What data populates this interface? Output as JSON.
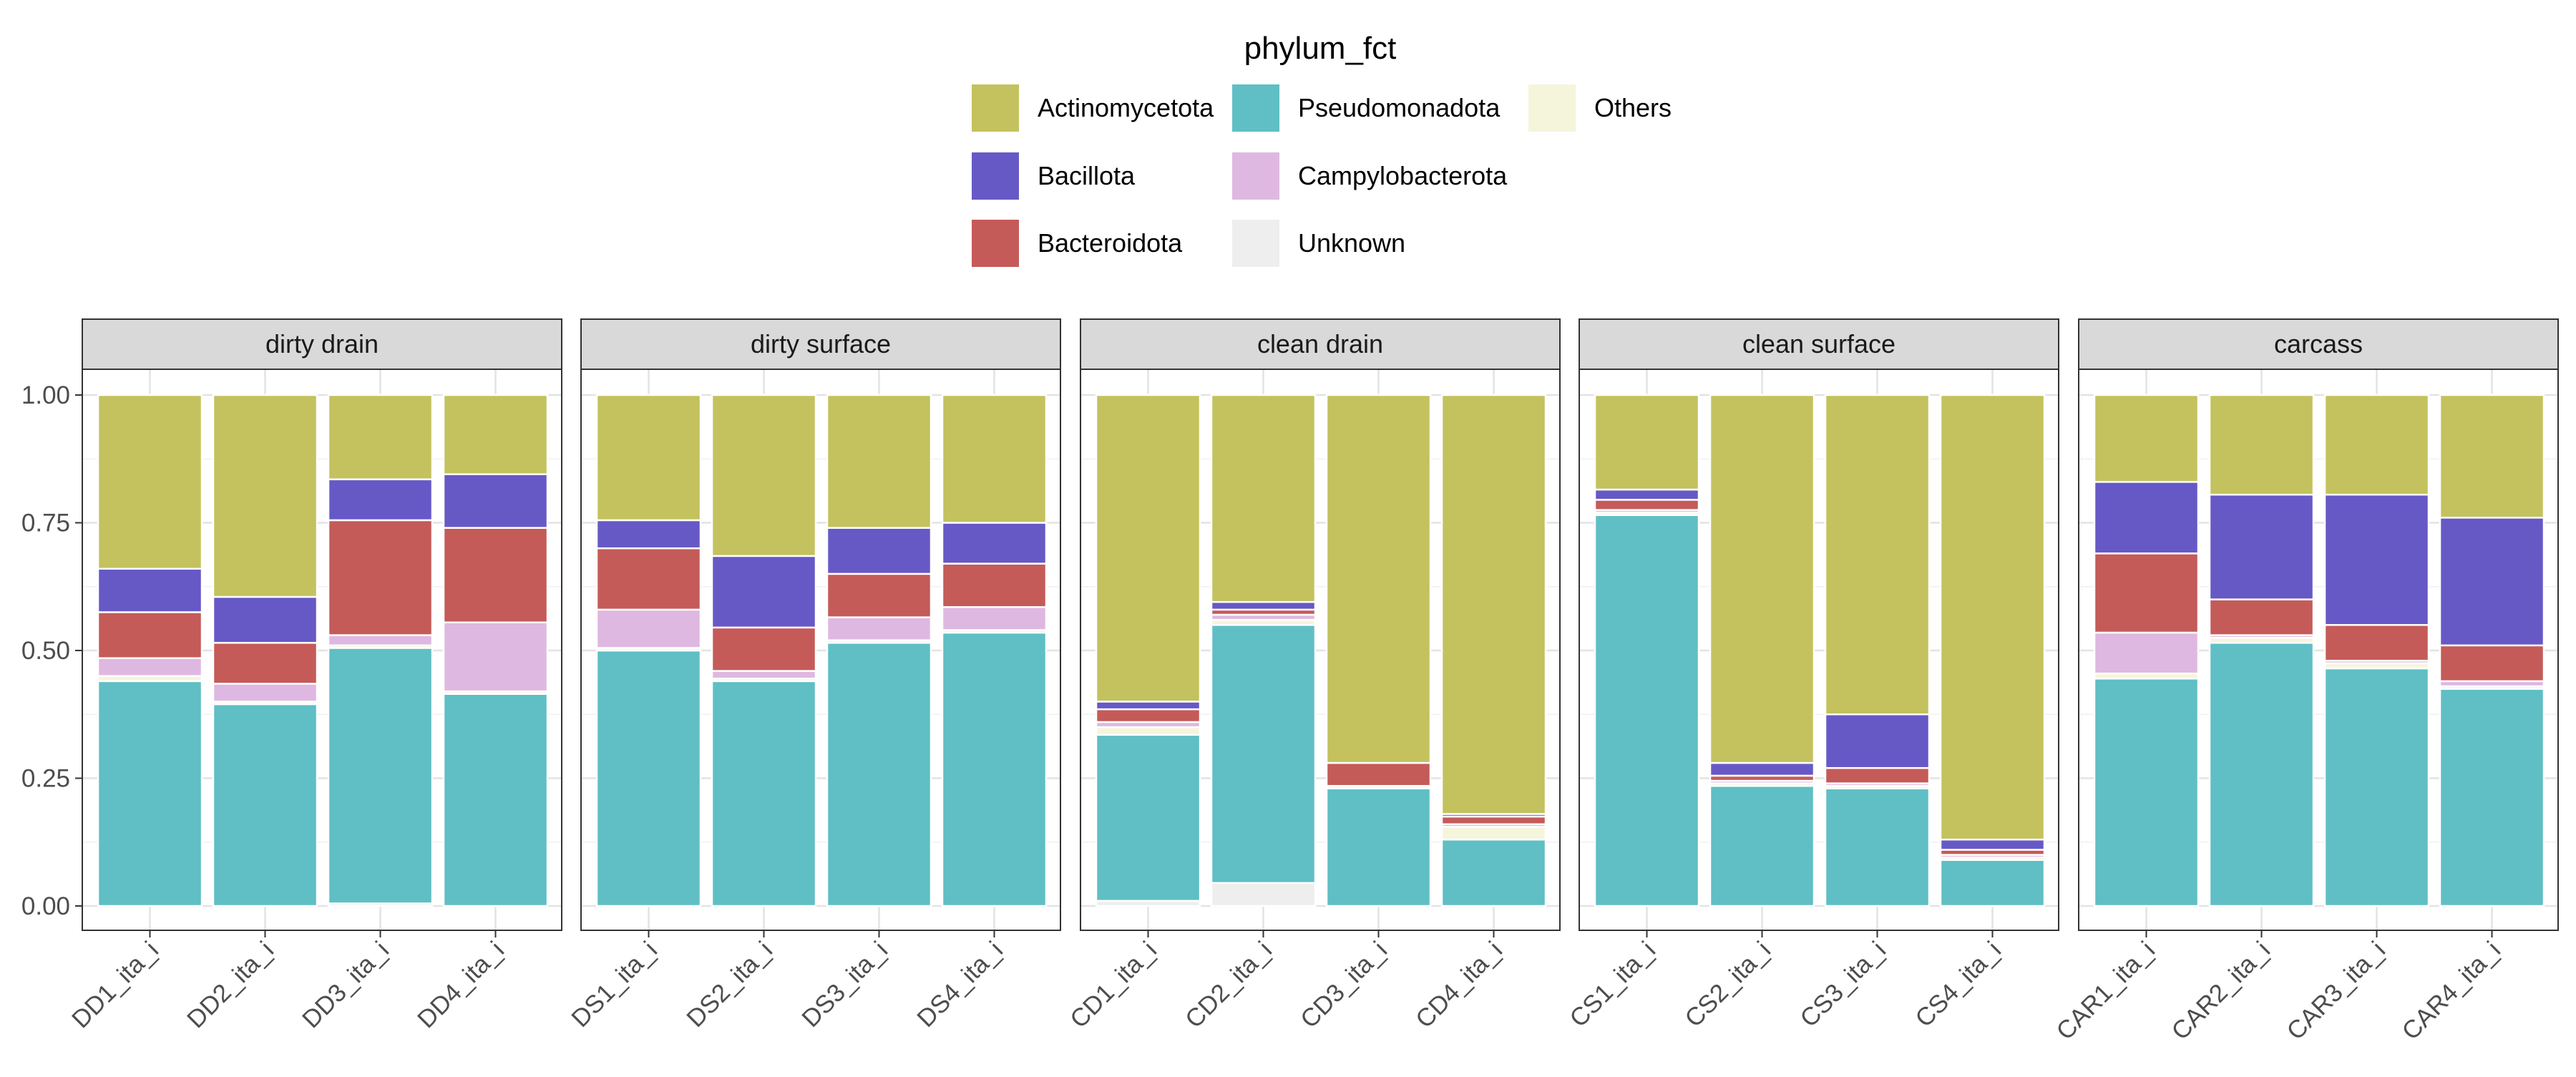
{
  "chart_data": {
    "type": "bar",
    "stacked": true,
    "legend": {
      "title": "phylum_fct",
      "placement": "top",
      "entries": [
        {
          "label": "Actinomycetota",
          "color": "#C3C25E"
        },
        {
          "label": "Bacillota",
          "color": "#6659C6"
        },
        {
          "label": "Bacteroidota",
          "color": "#C45B59"
        },
        {
          "label": "Pseudomonadota",
          "color": "#5FBFC5"
        },
        {
          "label": "Campylobacterota",
          "color": "#DFB8E1"
        },
        {
          "label": "Unknown",
          "color": "#EEEEEE"
        },
        {
          "label": "Others",
          "color": "#F5F5DC"
        }
      ]
    },
    "stack_order_bottom_to_top": [
      "Unknown",
      "Pseudomonadota",
      "Others",
      "Campylobacterota",
      "Bacteroidota",
      "Bacillota",
      "Actinomycetota"
    ],
    "ylim": [
      0,
      1
    ],
    "y_ticks": [
      "0.00",
      "0.25",
      "0.50",
      "0.75",
      "1.00"
    ],
    "y_tick_values": [
      0,
      0.25,
      0.5,
      0.75,
      1
    ],
    "grid": true,
    "panels": [
      {
        "title": "dirty drain",
        "samples": [
          {
            "label": "DD1_ita_i",
            "values": {
              "Unknown": 0.0,
              "Pseudomonadota": 0.44,
              "Others": 0.01,
              "Campylobacterota": 0.035,
              "Bacteroidota": 0.09,
              "Bacillota": 0.085,
              "Actinomycetota": 0.34
            }
          },
          {
            "label": "DD2_ita_i",
            "values": {
              "Unknown": 0.0,
              "Pseudomonadota": 0.395,
              "Others": 0.005,
              "Campylobacterota": 0.035,
              "Bacteroidota": 0.08,
              "Bacillota": 0.09,
              "Actinomycetota": 0.395
            }
          },
          {
            "label": "DD3_ita_i",
            "values": {
              "Unknown": 0.005,
              "Pseudomonadota": 0.5,
              "Others": 0.005,
              "Campylobacterota": 0.02,
              "Bacteroidota": 0.225,
              "Bacillota": 0.08,
              "Actinomycetota": 0.165
            }
          },
          {
            "label": "DD4_ita_i",
            "values": {
              "Unknown": 0.0,
              "Pseudomonadota": 0.415,
              "Others": 0.005,
              "Campylobacterota": 0.135,
              "Bacteroidota": 0.185,
              "Bacillota": 0.105,
              "Actinomycetota": 0.155
            }
          }
        ]
      },
      {
        "title": "dirty surface",
        "samples": [
          {
            "label": "DS1_ita_i",
            "values": {
              "Unknown": 0.0,
              "Pseudomonadota": 0.5,
              "Others": 0.005,
              "Campylobacterota": 0.075,
              "Bacteroidota": 0.12,
              "Bacillota": 0.055,
              "Actinomycetota": 0.245
            }
          },
          {
            "label": "DS2_ita_i",
            "values": {
              "Unknown": 0.0,
              "Pseudomonadota": 0.44,
              "Others": 0.005,
              "Campylobacterota": 0.015,
              "Bacteroidota": 0.085,
              "Bacillota": 0.14,
              "Actinomycetota": 0.315
            }
          },
          {
            "label": "DS3_ita_i",
            "values": {
              "Unknown": 0.0,
              "Pseudomonadota": 0.515,
              "Others": 0.005,
              "Campylobacterota": 0.045,
              "Bacteroidota": 0.085,
              "Bacillota": 0.09,
              "Actinomycetota": 0.26
            }
          },
          {
            "label": "DS4_ita_i",
            "values": {
              "Unknown": 0.0,
              "Pseudomonadota": 0.535,
              "Others": 0.005,
              "Campylobacterota": 0.045,
              "Bacteroidota": 0.085,
              "Bacillota": 0.08,
              "Actinomycetota": 0.25
            }
          }
        ]
      },
      {
        "title": "clean drain",
        "samples": [
          {
            "label": "CD1_ita_i",
            "values": {
              "Unknown": 0.01,
              "Pseudomonadota": 0.325,
              "Others": 0.015,
              "Campylobacterota": 0.01,
              "Bacteroidota": 0.025,
              "Bacillota": 0.015,
              "Actinomycetota": 0.6
            }
          },
          {
            "label": "CD2_ita_i",
            "values": {
              "Unknown": 0.045,
              "Pseudomonadota": 0.505,
              "Others": 0.01,
              "Campylobacterota": 0.01,
              "Bacteroidota": 0.01,
              "Bacillota": 0.015,
              "Actinomycetota": 0.405
            }
          },
          {
            "label": "CD3_ita_i",
            "values": {
              "Unknown": 0.0,
              "Pseudomonadota": 0.23,
              "Others": 0.005,
              "Campylobacterota": 0.0,
              "Bacteroidota": 0.045,
              "Bacillota": 0.0,
              "Actinomycetota": 0.72
            }
          },
          {
            "label": "CD4_ita_i",
            "values": {
              "Unknown": 0.0,
              "Pseudomonadota": 0.13,
              "Others": 0.025,
              "Campylobacterota": 0.005,
              "Bacteroidota": 0.015,
              "Bacillota": 0.005,
              "Actinomycetota": 0.82
            }
          }
        ]
      },
      {
        "title": "clean surface",
        "samples": [
          {
            "label": "CS1_ita_i",
            "values": {
              "Unknown": 0.0,
              "Pseudomonadota": 0.765,
              "Others": 0.005,
              "Campylobacterota": 0.005,
              "Bacteroidota": 0.02,
              "Bacillota": 0.02,
              "Actinomycetota": 0.185
            }
          },
          {
            "label": "CS2_ita_i",
            "values": {
              "Unknown": 0.0,
              "Pseudomonadota": 0.235,
              "Others": 0.005,
              "Campylobacterota": 0.005,
              "Bacteroidota": 0.01,
              "Bacillota": 0.025,
              "Actinomycetota": 0.72
            }
          },
          {
            "label": "CS3_ita_i",
            "values": {
              "Unknown": 0.0,
              "Pseudomonadota": 0.23,
              "Others": 0.005,
              "Campylobacterota": 0.005,
              "Bacteroidota": 0.03,
              "Bacillota": 0.105,
              "Actinomycetota": 0.625
            }
          },
          {
            "label": "CS4_ita_i",
            "values": {
              "Unknown": 0.0,
              "Pseudomonadota": 0.09,
              "Others": 0.005,
              "Campylobacterota": 0.005,
              "Bacteroidota": 0.01,
              "Bacillota": 0.02,
              "Actinomycetota": 0.87
            }
          }
        ]
      },
      {
        "title": "carcass",
        "samples": [
          {
            "label": "CAR1_ita_i",
            "values": {
              "Unknown": 0.0,
              "Pseudomonadota": 0.445,
              "Others": 0.01,
              "Campylobacterota": 0.08,
              "Bacteroidota": 0.155,
              "Bacillota": 0.14,
              "Actinomycetota": 0.17
            }
          },
          {
            "label": "CAR2_ita_i",
            "values": {
              "Unknown": 0.0,
              "Pseudomonadota": 0.515,
              "Others": 0.01,
              "Campylobacterota": 0.005,
              "Bacteroidota": 0.07,
              "Bacillota": 0.205,
              "Actinomycetota": 0.195
            }
          },
          {
            "label": "CAR3_ita_i",
            "values": {
              "Unknown": 0.0,
              "Pseudomonadota": 0.465,
              "Others": 0.01,
              "Campylobacterota": 0.005,
              "Bacteroidota": 0.07,
              "Bacillota": 0.255,
              "Actinomycetota": 0.195
            }
          },
          {
            "label": "CAR4_ita_i",
            "values": {
              "Unknown": 0.0,
              "Pseudomonadota": 0.425,
              "Others": 0.005,
              "Campylobacterota": 0.01,
              "Bacteroidota": 0.07,
              "Bacillota": 0.25,
              "Actinomycetota": 0.24
            }
          }
        ]
      }
    ]
  }
}
